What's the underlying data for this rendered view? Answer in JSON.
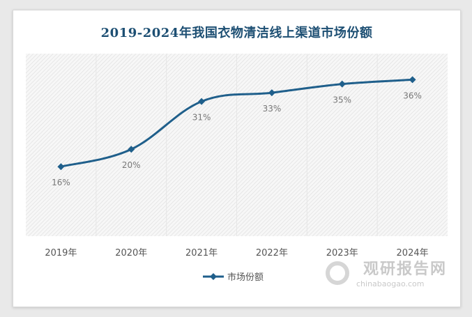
{
  "chart_data": {
    "type": "line",
    "title": "2019-2024年我国衣物清洁线上渠道市场份额",
    "categories": [
      "2019年",
      "2020年",
      "2021年",
      "2022年",
      "2023年",
      "2024年"
    ],
    "series": [
      {
        "name": "市场份额",
        "values": [
          16,
          20,
          31,
          33,
          35,
          36
        ],
        "labels": [
          "16%",
          "20%",
          "31%",
          "33%",
          "35%",
          "36%"
        ]
      }
    ],
    "ylim": [
      0,
      42
    ],
    "grid": true,
    "legend": "bottom",
    "colors": {
      "line": "#1f5f8b",
      "title": "#1d4f73",
      "label": "#777777"
    }
  },
  "watermark": {
    "name": "观研报告网",
    "url": "chinabaogao.com"
  }
}
